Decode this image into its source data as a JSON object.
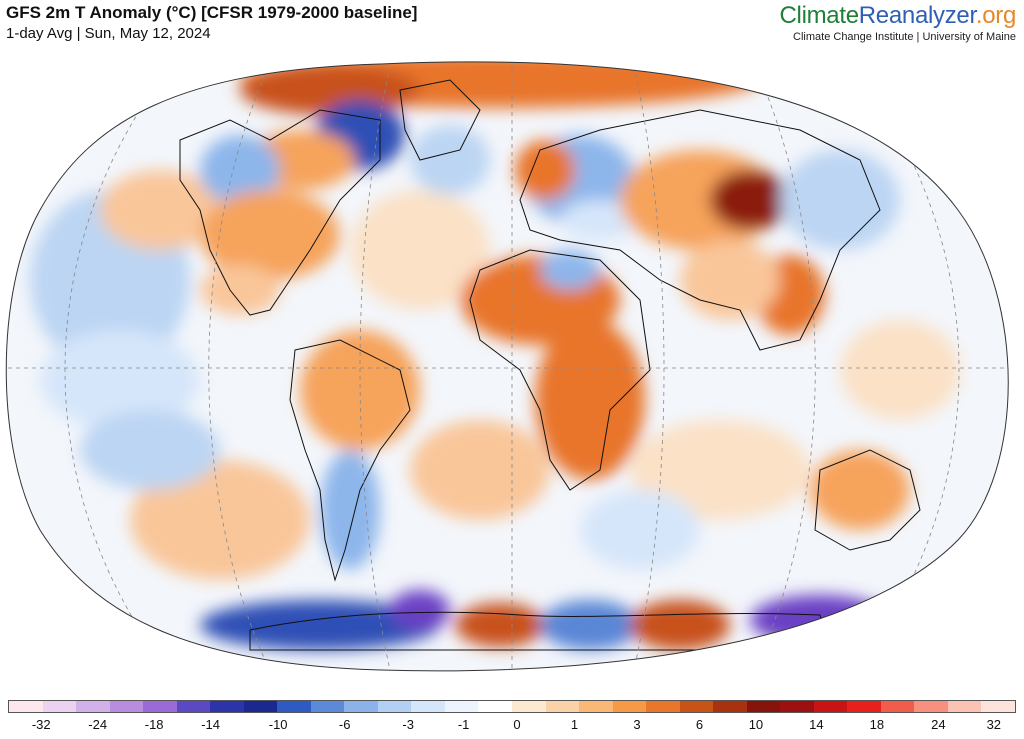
{
  "header": {
    "title": "GFS 2m T Anomaly (°C) [CFSR 1979-2000 baseline]",
    "subtitle": "1-day Avg | Sun, May 12, 2024"
  },
  "brand": {
    "name_part_1": "Climate",
    "name_part_2": "Reanalyzer",
    "name_part_3": ".org",
    "tagline": "Climate Change Institute | University of Maine",
    "colors": {
      "climate": "#1f7f36",
      "reanalyzer": "#2f5fb3",
      "org": "#e58a2b"
    }
  },
  "map": {
    "projection": "Winkel Tripel",
    "palette": {
      "ocean_neutral": "#f3f6fb",
      "warm": [
        "#fbe1c6",
        "#f9c69a",
        "#f6a35c",
        "#e8752b",
        "#c8511a",
        "#8b1a10"
      ],
      "cool": [
        "#e1edfb",
        "#bcd5f3",
        "#8db6eb",
        "#5a86d6",
        "#2f4fb5",
        "#6a3fc4"
      ],
      "coastline": "#111111",
      "graticule": "#888888"
    }
  },
  "legend": {
    "colors": [
      "#fde7ef",
      "#ead2f0",
      "#d2b0ea",
      "#b98ce0",
      "#9a6ad6",
      "#5a49c2",
      "#2d33a8",
      "#1a2890",
      "#2e5bc2",
      "#5c8ad8",
      "#8bb3ea",
      "#b3d0f4",
      "#d6e6fa",
      "#eef4fd",
      "#ffffff",
      "#fde8d2",
      "#fbd1a8",
      "#f9b876",
      "#f69a45",
      "#e8762b",
      "#c85316",
      "#a8320f",
      "#86140b",
      "#9c1010",
      "#c81414",
      "#e6201c",
      "#f25c4a",
      "#f7907f",
      "#fbc3b4",
      "#fde3dc"
    ],
    "labels": [
      "-32",
      "-24",
      "-18",
      "-14",
      "-10",
      "-6",
      "-3",
      "-1",
      "0",
      "1",
      "3",
      "6",
      "10",
      "14",
      "18",
      "24",
      "32"
    ],
    "label_positions": [
      0.033,
      0.089,
      0.145,
      0.201,
      0.268,
      0.334,
      0.397,
      0.452,
      0.505,
      0.562,
      0.624,
      0.686,
      0.742,
      0.802,
      0.862,
      0.923,
      0.978
    ]
  }
}
